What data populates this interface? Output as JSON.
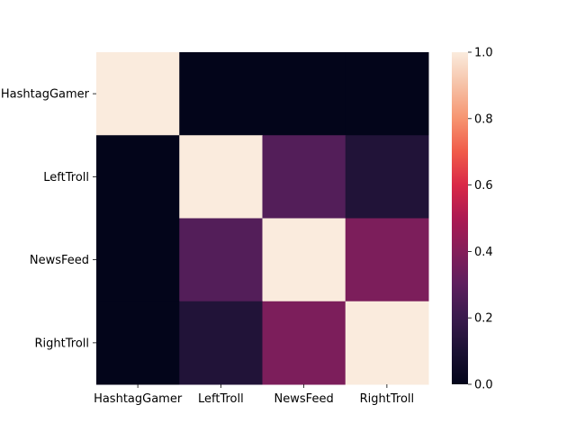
{
  "chart_data": {
    "type": "heatmap",
    "title": "",
    "xlabel": "",
    "ylabel": "",
    "x_categories": [
      "HashtagGamer",
      "LeftTroll",
      "NewsFeed",
      "RightTroll"
    ],
    "y_categories": [
      "HashtagGamer",
      "LeftTroll",
      "NewsFeed",
      "RightTroll"
    ],
    "matrix": [
      [
        1.0,
        0.0,
        0.0,
        0.0
      ],
      [
        0.0,
        1.0,
        0.27,
        0.12
      ],
      [
        0.0,
        0.27,
        1.0,
        0.38
      ],
      [
        0.0,
        0.12,
        0.38,
        1.0
      ]
    ],
    "colorbar": {
      "range": [
        0.0,
        1.0
      ],
      "ticks": [
        0.0,
        0.2,
        0.4,
        0.6,
        0.8,
        1.0
      ],
      "tick_labels": [
        "0.0",
        "0.2",
        "0.4",
        "0.6",
        "0.8",
        "1.0"
      ],
      "colormap": "rocket"
    }
  }
}
